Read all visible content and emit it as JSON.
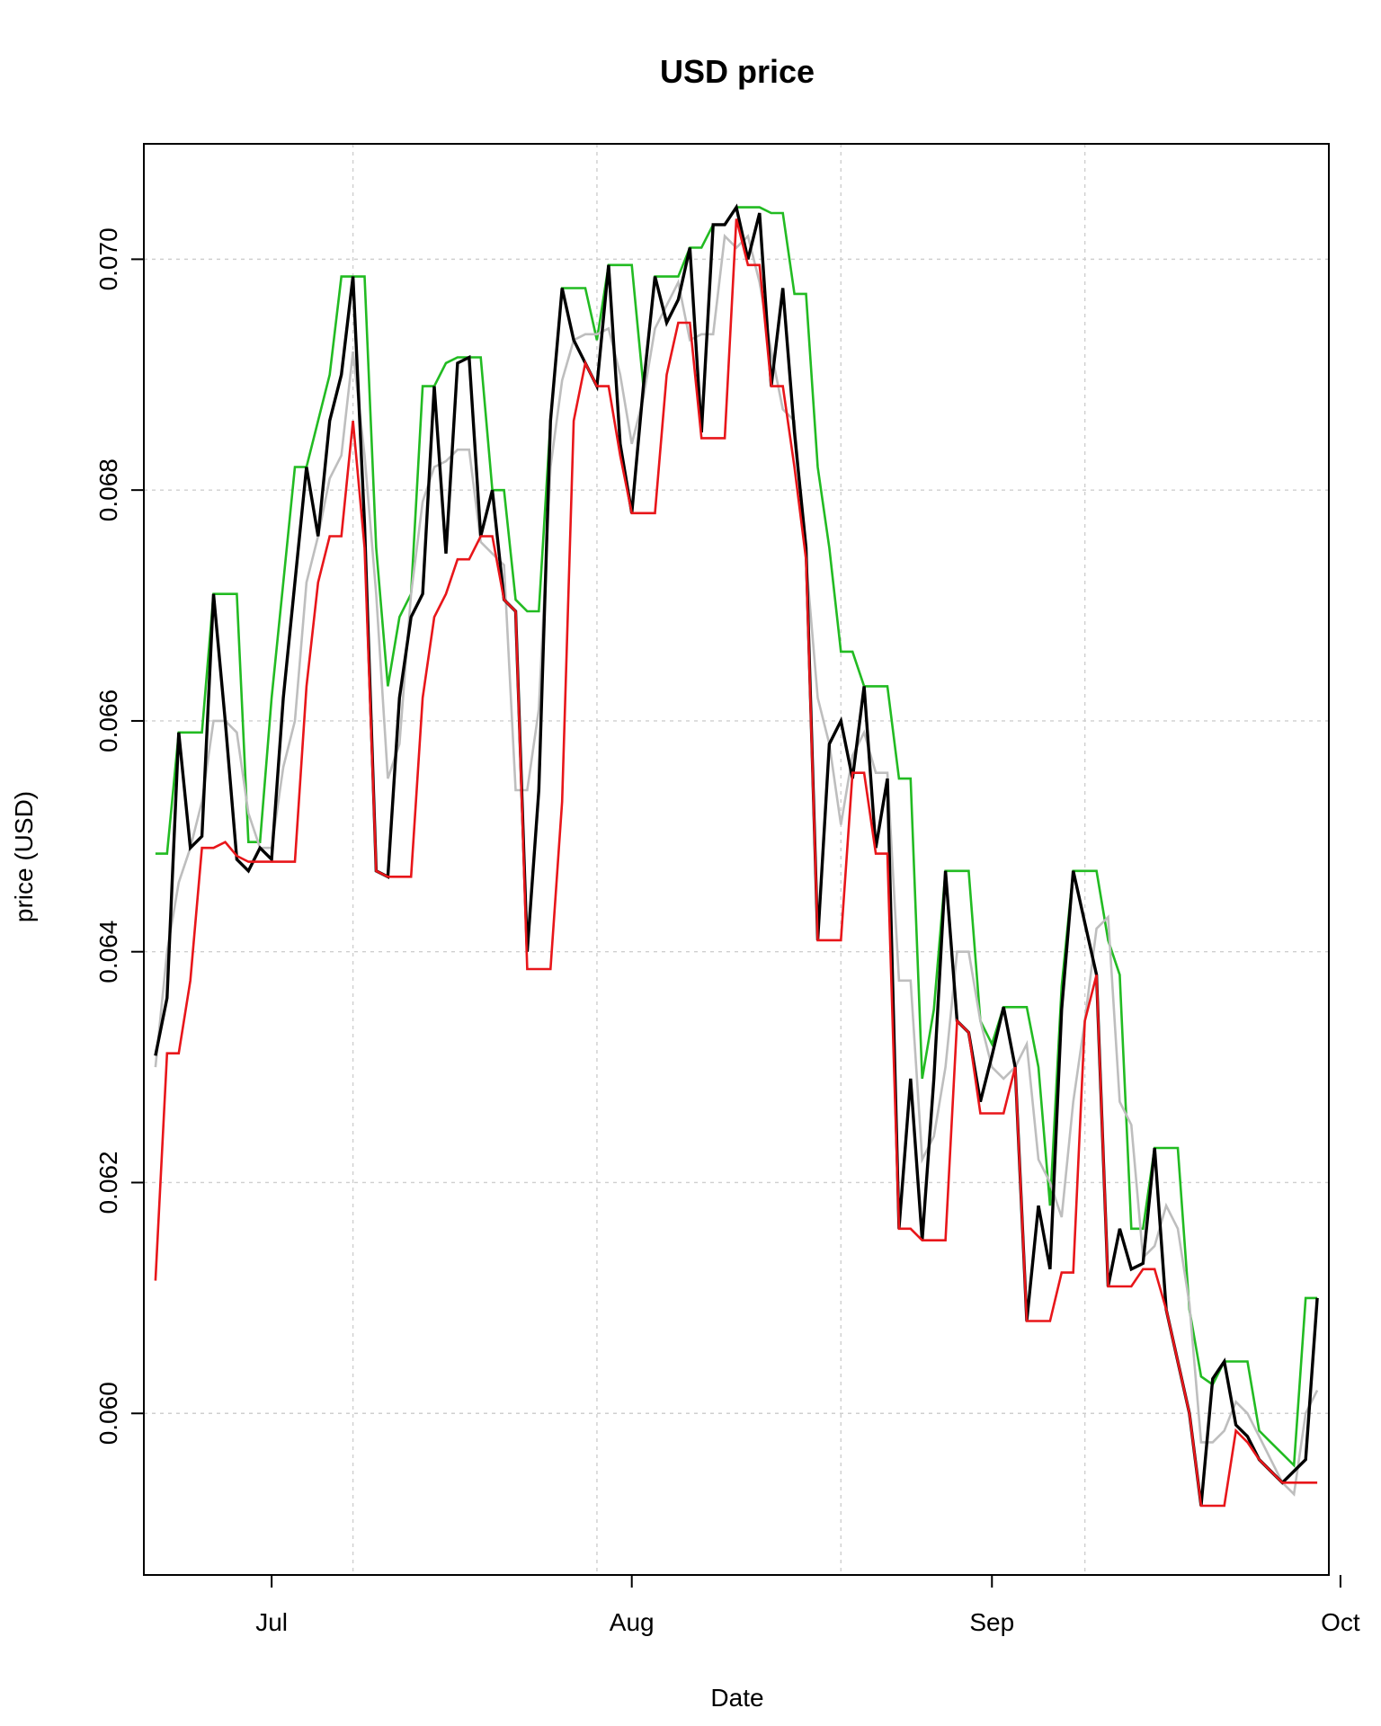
{
  "chart_data": {
    "type": "line",
    "title": "USD price",
    "xlabel": "Date",
    "ylabel": "price (USD)",
    "x_axis": {
      "type": "date",
      "range": [
        "2024-06-20",
        "2024-09-30"
      ],
      "tick_labels": [
        {
          "date": "2024-07-01",
          "label": "Jul"
        },
        {
          "date": "2024-08-01",
          "label": "Aug"
        },
        {
          "date": "2024-09-01",
          "label": "Sep"
        },
        {
          "date": "2024-10-01",
          "label": "Oct"
        }
      ]
    },
    "y_axis": {
      "range": [
        0.0586,
        0.071
      ],
      "ticks": [
        0.06,
        0.062,
        0.064,
        0.066,
        0.068,
        0.07
      ],
      "tick_labels": [
        "0.060",
        "0.062",
        "0.064",
        "0.066",
        "0.068",
        "0.070"
      ]
    },
    "grid": true,
    "colors": {
      "close": "#000000",
      "mean": "#bebebe",
      "high": "#22bb22",
      "low": "#e8161a"
    },
    "series": [
      {
        "key": "high",
        "x": [
          "2024-06-21",
          "2024-06-22",
          "2024-06-23",
          "2024-06-24",
          "2024-06-25",
          "2024-06-26",
          "2024-06-27",
          "2024-06-28",
          "2024-06-29",
          "2024-06-30",
          "2024-07-01",
          "2024-07-02",
          "2024-07-03",
          "2024-07-04",
          "2024-07-05",
          "2024-07-06",
          "2024-07-07",
          "2024-07-08",
          "2024-07-09",
          "2024-07-10",
          "2024-07-11",
          "2024-07-12",
          "2024-07-13",
          "2024-07-14",
          "2024-07-15",
          "2024-07-16",
          "2024-07-17",
          "2024-07-18",
          "2024-07-19",
          "2024-07-20",
          "2024-07-21",
          "2024-07-22",
          "2024-07-23",
          "2024-07-24",
          "2024-07-25",
          "2024-07-26",
          "2024-07-27",
          "2024-07-28",
          "2024-07-29",
          "2024-07-30",
          "2024-07-31",
          "2024-08-01",
          "2024-08-02",
          "2024-08-03",
          "2024-08-04",
          "2024-08-05",
          "2024-08-06",
          "2024-08-07",
          "2024-08-08",
          "2024-08-09",
          "2024-08-10",
          "2024-08-11",
          "2024-08-12",
          "2024-08-13",
          "2024-08-14",
          "2024-08-15",
          "2024-08-16",
          "2024-08-17",
          "2024-08-18",
          "2024-08-19",
          "2024-08-20",
          "2024-08-21",
          "2024-08-22",
          "2024-08-23",
          "2024-08-24",
          "2024-08-25",
          "2024-08-26",
          "2024-08-27",
          "2024-08-28",
          "2024-08-29",
          "2024-08-30",
          "2024-08-31",
          "2024-09-01",
          "2024-09-02",
          "2024-09-03",
          "2024-09-04",
          "2024-09-05",
          "2024-09-06",
          "2024-09-07",
          "2024-09-08",
          "2024-09-09",
          "2024-09-10",
          "2024-09-11",
          "2024-09-12",
          "2024-09-13",
          "2024-09-14",
          "2024-09-15",
          "2024-09-16",
          "2024-09-17",
          "2024-09-18",
          "2024-09-19",
          "2024-09-20",
          "2024-09-21",
          "2024-09-22",
          "2024-09-23",
          "2024-09-24",
          "2024-09-25",
          "2024-09-26",
          "2024-09-27",
          "2024-09-28",
          "2024-09-29"
        ],
        "values": [
          0.06485,
          0.06485,
          0.0659,
          0.0659,
          0.0659,
          0.0671,
          0.0671,
          0.0671,
          0.06495,
          0.06495,
          0.0662,
          0.0672,
          0.0682,
          0.0682,
          0.0686,
          0.069,
          0.06985,
          0.06985,
          0.06985,
          0.0675,
          0.0663,
          0.0669,
          0.0671,
          0.0689,
          0.0689,
          0.0691,
          0.06915,
          0.06915,
          0.06915,
          0.068,
          0.068,
          0.06705,
          0.06695,
          0.06695,
          0.0686,
          0.06975,
          0.06975,
          0.06975,
          0.0693,
          0.06995,
          0.06995,
          0.06995,
          0.0689,
          0.06985,
          0.06985,
          0.06985,
          0.0701,
          0.0701,
          0.0703,
          0.0703,
          0.07045,
          0.07045,
          0.07045,
          0.0704,
          0.0704,
          0.0697,
          0.0697,
          0.0682,
          0.0675,
          0.0666,
          0.0666,
          0.0663,
          0.0663,
          0.0663,
          0.0655,
          0.0655,
          0.0629,
          0.0635,
          0.0647,
          0.0647,
          0.0647,
          0.0634,
          0.0632,
          0.06352,
          0.06352,
          0.06352,
          0.063,
          0.0618,
          0.0637,
          0.0647,
          0.0647,
          0.0647,
          0.0641,
          0.0638,
          0.0616,
          0.0616,
          0.0623,
          0.0623,
          0.0623,
          0.0609,
          0.06032,
          0.06025,
          0.06045,
          0.06045,
          0.06045,
          0.05985,
          0.05975,
          0.05965,
          0.05955,
          0.061,
          0.061
        ]
      },
      {
        "key": "mean",
        "x": [
          "2024-06-21",
          "2024-06-22",
          "2024-06-23",
          "2024-06-24",
          "2024-06-25",
          "2024-06-26",
          "2024-06-27",
          "2024-06-28",
          "2024-06-29",
          "2024-06-30",
          "2024-07-01",
          "2024-07-02",
          "2024-07-03",
          "2024-07-04",
          "2024-07-05",
          "2024-07-06",
          "2024-07-07",
          "2024-07-08",
          "2024-07-09",
          "2024-07-10",
          "2024-07-11",
          "2024-07-12",
          "2024-07-13",
          "2024-07-14",
          "2024-07-15",
          "2024-07-16",
          "2024-07-17",
          "2024-07-18",
          "2024-07-19",
          "2024-07-20",
          "2024-07-21",
          "2024-07-22",
          "2024-07-23",
          "2024-07-24",
          "2024-07-25",
          "2024-07-26",
          "2024-07-27",
          "2024-07-28",
          "2024-07-29",
          "2024-07-30",
          "2024-07-31",
          "2024-08-01",
          "2024-08-02",
          "2024-08-03",
          "2024-08-04",
          "2024-08-05",
          "2024-08-06",
          "2024-08-07",
          "2024-08-08",
          "2024-08-09",
          "2024-08-10",
          "2024-08-11",
          "2024-08-12",
          "2024-08-13",
          "2024-08-14",
          "2024-08-15",
          "2024-08-16",
          "2024-08-17",
          "2024-08-18",
          "2024-08-19",
          "2024-08-20",
          "2024-08-21",
          "2024-08-22",
          "2024-08-23",
          "2024-08-24",
          "2024-08-25",
          "2024-08-26",
          "2024-08-27",
          "2024-08-28",
          "2024-08-29",
          "2024-08-30",
          "2024-08-31",
          "2024-09-01",
          "2024-09-02",
          "2024-09-03",
          "2024-09-04",
          "2024-09-05",
          "2024-09-06",
          "2024-09-07",
          "2024-09-08",
          "2024-09-09",
          "2024-09-10",
          "2024-09-11",
          "2024-09-12",
          "2024-09-13",
          "2024-09-14",
          "2024-09-15",
          "2024-09-16",
          "2024-09-17",
          "2024-09-18",
          "2024-09-19",
          "2024-09-20",
          "2024-09-21",
          "2024-09-22",
          "2024-09-23",
          "2024-09-24",
          "2024-09-25",
          "2024-09-26",
          "2024-09-27",
          "2024-09-28",
          "2024-09-29"
        ],
        "values": [
          0.063,
          0.064,
          0.0646,
          0.0649,
          0.0653,
          0.066,
          0.066,
          0.0659,
          0.0652,
          0.0649,
          0.0649,
          0.0656,
          0.066,
          0.0672,
          0.0676,
          0.0681,
          0.0683,
          0.0692,
          0.0683,
          0.0671,
          0.0655,
          0.0658,
          0.0671,
          0.0679,
          0.0682,
          0.06825,
          0.06835,
          0.06835,
          0.06755,
          0.06745,
          0.06735,
          0.0654,
          0.0654,
          0.0661,
          0.0682,
          0.06895,
          0.0693,
          0.06935,
          0.06935,
          0.0694,
          0.069,
          0.0684,
          0.0688,
          0.0694,
          0.0696,
          0.0698,
          0.0693,
          0.06935,
          0.06935,
          0.0702,
          0.0701,
          0.0702,
          0.0698,
          0.0692,
          0.0687,
          0.0686,
          0.0674,
          0.0662,
          0.0658,
          0.0651,
          0.0657,
          0.0659,
          0.06555,
          0.06555,
          0.06375,
          0.06375,
          0.0622,
          0.0624,
          0.063,
          0.064,
          0.064,
          0.0634,
          0.063,
          0.0629,
          0.063,
          0.0632,
          0.0622,
          0.062,
          0.0617,
          0.0627,
          0.0634,
          0.0642,
          0.0643,
          0.0627,
          0.0625,
          0.06135,
          0.06145,
          0.0618,
          0.0616,
          0.06095,
          0.05975,
          0.05975,
          0.05985,
          0.0601,
          0.06,
          0.0598,
          0.0596,
          0.0594,
          0.0593,
          0.06,
          0.0602
        ]
      },
      {
        "key": "close",
        "x": [
          "2024-06-21",
          "2024-06-22",
          "2024-06-23",
          "2024-06-24",
          "2024-06-25",
          "2024-06-26",
          "2024-06-27",
          "2024-06-28",
          "2024-06-29",
          "2024-06-30",
          "2024-07-01",
          "2024-07-02",
          "2024-07-03",
          "2024-07-04",
          "2024-07-05",
          "2024-07-06",
          "2024-07-07",
          "2024-07-08",
          "2024-07-09",
          "2024-07-10",
          "2024-07-11",
          "2024-07-12",
          "2024-07-13",
          "2024-07-14",
          "2024-07-15",
          "2024-07-16",
          "2024-07-17",
          "2024-07-18",
          "2024-07-19",
          "2024-07-20",
          "2024-07-21",
          "2024-07-22",
          "2024-07-23",
          "2024-07-24",
          "2024-07-25",
          "2024-07-26",
          "2024-07-27",
          "2024-07-28",
          "2024-07-29",
          "2024-07-30",
          "2024-07-31",
          "2024-08-01",
          "2024-08-02",
          "2024-08-03",
          "2024-08-04",
          "2024-08-05",
          "2024-08-06",
          "2024-08-07",
          "2024-08-08",
          "2024-08-09",
          "2024-08-10",
          "2024-08-11",
          "2024-08-12",
          "2024-08-13",
          "2024-08-14",
          "2024-08-15",
          "2024-08-16",
          "2024-08-17",
          "2024-08-18",
          "2024-08-19",
          "2024-08-20",
          "2024-08-21",
          "2024-08-22",
          "2024-08-23",
          "2024-08-24",
          "2024-08-25",
          "2024-08-26",
          "2024-08-27",
          "2024-08-28",
          "2024-08-29",
          "2024-08-30",
          "2024-08-31",
          "2024-09-01",
          "2024-09-02",
          "2024-09-03",
          "2024-09-04",
          "2024-09-05",
          "2024-09-06",
          "2024-09-07",
          "2024-09-08",
          "2024-09-09",
          "2024-09-10",
          "2024-09-11",
          "2024-09-12",
          "2024-09-13",
          "2024-09-14",
          "2024-09-15",
          "2024-09-16",
          "2024-09-17",
          "2024-09-18",
          "2024-09-19",
          "2024-09-20",
          "2024-09-21",
          "2024-09-22",
          "2024-09-23",
          "2024-09-24",
          "2024-09-25",
          "2024-09-26",
          "2024-09-27",
          "2024-09-28",
          "2024-09-29"
        ],
        "values": [
          0.0631,
          0.0636,
          0.0659,
          0.0649,
          0.065,
          0.0671,
          0.066,
          0.0648,
          0.0647,
          0.0649,
          0.0648,
          0.0662,
          0.0672,
          0.0682,
          0.0676,
          0.0686,
          0.069,
          0.06985,
          0.0677,
          0.0647,
          0.06465,
          0.0662,
          0.0669,
          0.0671,
          0.0689,
          0.06745,
          0.0691,
          0.06915,
          0.0676,
          0.068,
          0.06705,
          0.06695,
          0.064,
          0.0654,
          0.0686,
          0.06975,
          0.0693,
          0.0691,
          0.0689,
          0.06995,
          0.0684,
          0.0678,
          0.0689,
          0.06985,
          0.06945,
          0.06965,
          0.0701,
          0.0685,
          0.0703,
          0.0703,
          0.07045,
          0.07,
          0.0704,
          0.0689,
          0.06975,
          0.0685,
          0.0675,
          0.0641,
          0.0658,
          0.066,
          0.0655,
          0.0663,
          0.0649,
          0.0655,
          0.0616,
          0.0629,
          0.0615,
          0.0629,
          0.0647,
          0.0634,
          0.0633,
          0.0627,
          0.0631,
          0.06352,
          0.063,
          0.0608,
          0.0618,
          0.06125,
          0.0635,
          0.0647,
          0.06425,
          0.0638,
          0.0611,
          0.0616,
          0.06125,
          0.0613,
          0.0623,
          0.0609,
          0.06045,
          0.06,
          0.0592,
          0.0603,
          0.06045,
          0.0599,
          0.0598,
          0.0596,
          0.0595,
          0.0594,
          0.0595,
          0.0596,
          0.061
        ]
      },
      {
        "key": "low",
        "x": [
          "2024-06-21",
          "2024-06-22",
          "2024-06-23",
          "2024-06-24",
          "2024-06-25",
          "2024-06-26",
          "2024-06-27",
          "2024-06-28",
          "2024-06-29",
          "2024-06-30",
          "2024-07-01",
          "2024-07-02",
          "2024-07-03",
          "2024-07-04",
          "2024-07-05",
          "2024-07-06",
          "2024-07-07",
          "2024-07-08",
          "2024-07-09",
          "2024-07-10",
          "2024-07-11",
          "2024-07-12",
          "2024-07-13",
          "2024-07-14",
          "2024-07-15",
          "2024-07-16",
          "2024-07-17",
          "2024-07-18",
          "2024-07-19",
          "2024-07-20",
          "2024-07-21",
          "2024-07-22",
          "2024-07-23",
          "2024-07-24",
          "2024-07-25",
          "2024-07-26",
          "2024-07-27",
          "2024-07-28",
          "2024-07-29",
          "2024-07-30",
          "2024-07-31",
          "2024-08-01",
          "2024-08-02",
          "2024-08-03",
          "2024-08-04",
          "2024-08-05",
          "2024-08-06",
          "2024-08-07",
          "2024-08-08",
          "2024-08-09",
          "2024-08-10",
          "2024-08-11",
          "2024-08-12",
          "2024-08-13",
          "2024-08-14",
          "2024-08-15",
          "2024-08-16",
          "2024-08-17",
          "2024-08-18",
          "2024-08-19",
          "2024-08-20",
          "2024-08-21",
          "2024-08-22",
          "2024-08-23",
          "2024-08-24",
          "2024-08-25",
          "2024-08-26",
          "2024-08-27",
          "2024-08-28",
          "2024-08-29",
          "2024-08-30",
          "2024-08-31",
          "2024-09-01",
          "2024-09-02",
          "2024-09-03",
          "2024-09-04",
          "2024-09-05",
          "2024-09-06",
          "2024-09-07",
          "2024-09-08",
          "2024-09-09",
          "2024-09-10",
          "2024-09-11",
          "2024-09-12",
          "2024-09-13",
          "2024-09-14",
          "2024-09-15",
          "2024-09-16",
          "2024-09-17",
          "2024-09-18",
          "2024-09-19",
          "2024-09-20",
          "2024-09-21",
          "2024-09-22",
          "2024-09-23",
          "2024-09-24",
          "2024-09-25",
          "2024-09-26",
          "2024-09-27",
          "2024-09-28",
          "2024-09-29"
        ],
        "values": [
          0.06115,
          0.06312,
          0.06312,
          0.06375,
          0.0649,
          0.0649,
          0.06495,
          0.06483,
          0.06478,
          0.06478,
          0.06478,
          0.06478,
          0.06478,
          0.0663,
          0.0672,
          0.0676,
          0.0676,
          0.0686,
          0.0675,
          0.0647,
          0.06465,
          0.06465,
          0.06465,
          0.0662,
          0.0669,
          0.0671,
          0.0674,
          0.0674,
          0.0676,
          0.0676,
          0.06705,
          0.06695,
          0.06385,
          0.06385,
          0.06385,
          0.0653,
          0.0686,
          0.0691,
          0.0689,
          0.0689,
          0.0683,
          0.0678,
          0.0678,
          0.0678,
          0.069,
          0.06945,
          0.06945,
          0.06845,
          0.06845,
          0.06845,
          0.07035,
          0.06995,
          0.06995,
          0.0689,
          0.0689,
          0.0682,
          0.0674,
          0.0641,
          0.0641,
          0.0641,
          0.06555,
          0.06555,
          0.06485,
          0.06485,
          0.0616,
          0.0616,
          0.0615,
          0.0615,
          0.0615,
          0.0634,
          0.0633,
          0.0626,
          0.0626,
          0.0626,
          0.063,
          0.0608,
          0.0608,
          0.0608,
          0.06122,
          0.06122,
          0.0634,
          0.0638,
          0.0611,
          0.0611,
          0.0611,
          0.06125,
          0.06125,
          0.0609,
          0.06045,
          0.06,
          0.0592,
          0.0592,
          0.0592,
          0.05985,
          0.05975,
          0.0596,
          0.0595,
          0.0594,
          0.0594,
          0.0594,
          0.0594
        ]
      }
    ]
  }
}
